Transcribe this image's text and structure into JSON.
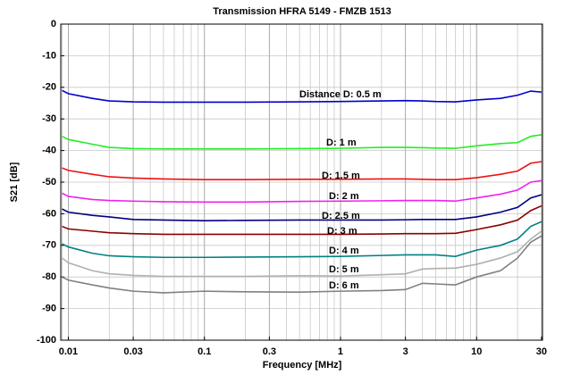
{
  "chart_data": {
    "type": "line",
    "title": "Transmission HFRA 5149 - FMZB 1513",
    "x_label": "Frequency [MHz]",
    "y_label": "S21 [dB]",
    "log_x": true,
    "grid": true,
    "x": [
      0.009,
      0.01,
      0.015,
      0.02,
      0.03,
      0.05,
      0.1,
      0.2,
      0.5,
      1,
      2,
      3,
      4,
      5,
      7,
      10,
      15,
      20,
      25,
      30
    ],
    "xlim": [
      0.0088,
      30.5
    ],
    "xticks": [
      0.01,
      0.03,
      0.1,
      0.3,
      1,
      3,
      10,
      30
    ],
    "ylim": [
      -100,
      0
    ],
    "yticks": [
      -100,
      -90,
      -80,
      -70,
      -60,
      -50,
      -40,
      -30,
      -20,
      -10,
      0
    ],
    "series": [
      {
        "name": "Distance D: 0.5 m",
        "color": "#0000cc",
        "values": [
          -21,
          -22,
          -23.5,
          -24.3,
          -24.6,
          -24.7,
          -24.7,
          -24.7,
          -24.6,
          -24.5,
          -24.3,
          -24.2,
          -24.3,
          -24.5,
          -24.6,
          -24,
          -23.5,
          -22.5,
          -21.2,
          -21.5
        ]
      },
      {
        "name": "D: 1 m",
        "color": "#22ee22",
        "values": [
          -35.5,
          -36.5,
          -38,
          -39,
          -39.4,
          -39.5,
          -39.5,
          -39.5,
          -39.4,
          -39.3,
          -39,
          -39,
          -39.1,
          -39.2,
          -39.3,
          -38.5,
          -37.8,
          -37.5,
          -35.5,
          -35
        ]
      },
      {
        "name": "D: 1.5 m",
        "color": "#ee1111",
        "values": [
          -45.5,
          -46.3,
          -47.5,
          -48.3,
          -48.7,
          -49,
          -49.2,
          -49.2,
          -49.1,
          -49.1,
          -49,
          -49,
          -49.1,
          -49.2,
          -49.2,
          -48.6,
          -47.5,
          -46.5,
          -44,
          -43.5
        ]
      },
      {
        "name": "D: 2 m",
        "color": "#ee22ee",
        "values": [
          -53.5,
          -54.5,
          -55.5,
          -55.8,
          -56,
          -56.2,
          -56.3,
          -56.3,
          -56.1,
          -56,
          -55.9,
          -55.8,
          -55.8,
          -55.8,
          -56,
          -55,
          -53.8,
          -52.5,
          -50,
          -49.5
        ]
      },
      {
        "name": "D: 2.5 m",
        "color": "#000080",
        "values": [
          -58.5,
          -59.5,
          -60.5,
          -61,
          -61.8,
          -62,
          -62.2,
          -62.1,
          -62,
          -62,
          -62,
          -61.9,
          -61.8,
          -61.8,
          -61.8,
          -61,
          -59.5,
          -58,
          -55,
          -54
        ]
      },
      {
        "name": "D: 3 m",
        "color": "#8b0000",
        "values": [
          -64,
          -64.8,
          -65.5,
          -66,
          -66.3,
          -66.5,
          -66.5,
          -66.5,
          -66.5,
          -66.5,
          -66.4,
          -66.3,
          -66.3,
          -66.3,
          -66.2,
          -65,
          -63.5,
          -62,
          -59,
          -57.5
        ]
      },
      {
        "name": "D: 4 m",
        "color": "#008080",
        "values": [
          -69.5,
          -70.5,
          -72.5,
          -73.3,
          -73.6,
          -73.8,
          -73.8,
          -73.7,
          -73.6,
          -73.5,
          -73.2,
          -73,
          -73,
          -73,
          -73.5,
          -71.5,
          -70,
          -68,
          -64,
          -62.5
        ]
      },
      {
        "name": "D: 5 m",
        "color": "#b0b0b0",
        "values": [
          -74,
          -75.5,
          -78,
          -79,
          -79.5,
          -79.8,
          -79.8,
          -79.8,
          -79.6,
          -79.7,
          -79.3,
          -79,
          -77.5,
          -77.3,
          -77.2,
          -76,
          -74,
          -72,
          -68,
          -65.5
        ]
      },
      {
        "name": "D: 6 m",
        "color": "#808080",
        "values": [
          -80,
          -81,
          -82.5,
          -83.5,
          -84.5,
          -85,
          -84.5,
          -84.7,
          -84.8,
          -84.5,
          -84.3,
          -84,
          -82,
          -82.2,
          -82.5,
          -80,
          -78,
          -74,
          -69,
          -67
        ]
      }
    ]
  }
}
